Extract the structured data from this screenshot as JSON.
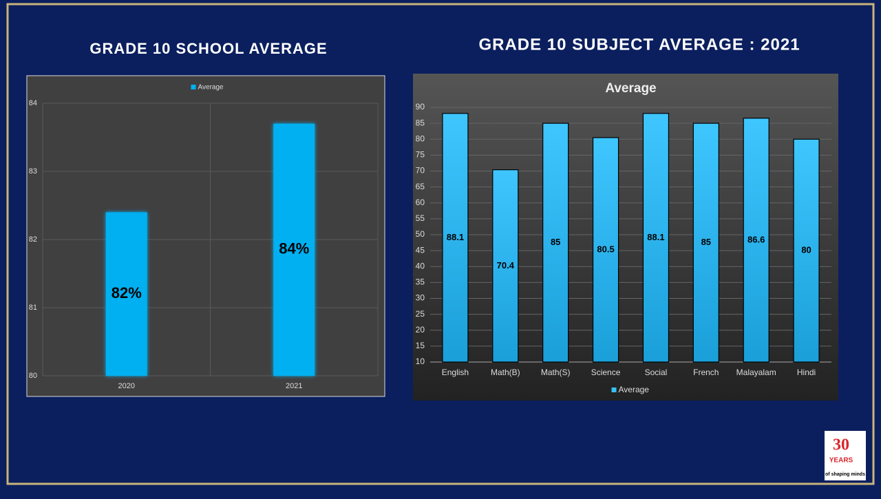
{
  "chart_data": [
    {
      "type": "bar",
      "heading": "GRADE 10 SCHOOL AVERAGE",
      "categories": [
        "2020",
        "2021"
      ],
      "series": [
        {
          "name": "Average",
          "color": "#00b0f0",
          "values": [
            82.4,
            83.7
          ],
          "value_labels": [
            "82%",
            "84%"
          ]
        }
      ],
      "ylim": [
        80,
        84
      ],
      "yticks": [
        80,
        81,
        82,
        83,
        84
      ],
      "grid": true,
      "legend": "top"
    },
    {
      "type": "bar",
      "heading": "GRADE 10 SUBJECT AVERAGE : 2021",
      "title": "Average",
      "categories": [
        "English",
        "Math(B)",
        "Math(S)",
        "Science",
        "Social",
        "French",
        "Malayalam",
        "Hindi"
      ],
      "series": [
        {
          "name": "Average",
          "color": "#38bff5",
          "values": [
            88.1,
            70.4,
            85,
            80.5,
            88.1,
            85,
            86.6,
            80
          ]
        }
      ],
      "ylim": [
        10,
        90
      ],
      "yticks": [
        10,
        15,
        20,
        25,
        30,
        35,
        40,
        45,
        50,
        55,
        60,
        65,
        70,
        75,
        80,
        85,
        90
      ],
      "grid": true,
      "legend": "bottom"
    }
  ],
  "logo": {
    "number": "30",
    "word": "YEARS",
    "tagline": "of shaping minds"
  }
}
